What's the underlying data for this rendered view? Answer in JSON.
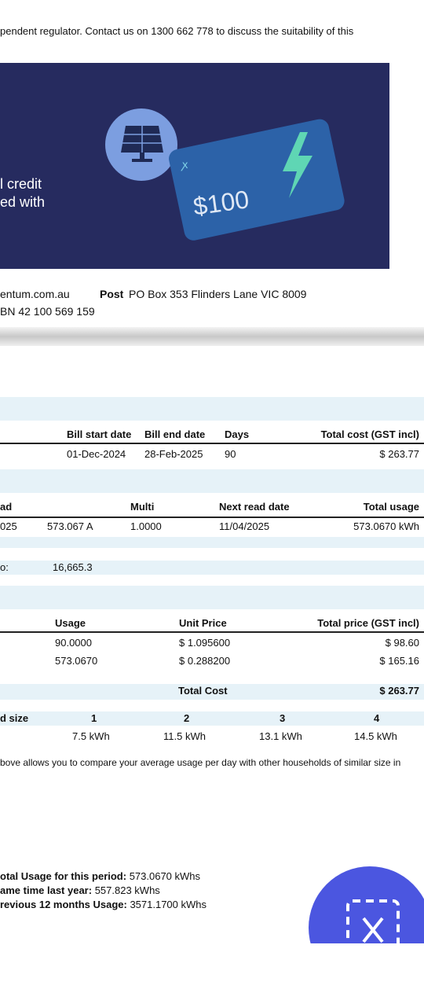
{
  "intro": "pendent regulator. Contact us on 1300 662 778 to discuss the suitability of this",
  "banner": {
    "line1": "l credit",
    "line2": "ed with",
    "amount": "$100"
  },
  "contact": {
    "web": "entum.com.au",
    "post_label": "Post",
    "post": "PO Box 353 Flinders Lane VIC 8009",
    "abn": "BN 42 100 569 159"
  },
  "bill_period": {
    "headers": [
      "Bill start date",
      "Bill end date",
      "Days",
      "Total cost (GST incl)"
    ],
    "row": [
      "01-Dec-2024",
      "28-Feb-2025",
      "90",
      "$ 263.77"
    ]
  },
  "meter": {
    "headers": [
      "ad",
      "Multi",
      "Next read date",
      "Total usage"
    ],
    "row": [
      "025",
      "573.067 A",
      "1.0000",
      "11/04/2025",
      "573.0670 kWh"
    ],
    "extra_label": "o:",
    "extra_value": "16,665.3"
  },
  "charges": {
    "headers": [
      "Usage",
      "Unit Price",
      "Total price (GST incl)"
    ],
    "rows": [
      [
        "90.0000",
        "$ 1.095600",
        "$ 98.60"
      ],
      [
        "573.0670",
        "$ 0.288200",
        "$ 165.16"
      ]
    ],
    "total_label": "Total Cost",
    "total": "$ 263.77"
  },
  "household": {
    "label": "d size",
    "sizes": [
      "1",
      "2",
      "3",
      "4"
    ],
    "usage": [
      "7.5 kWh",
      "11.5 kWh",
      "13.1 kWh",
      "14.5 kWh"
    ],
    "note": "bove allows you to compare your average usage per day with other households of similar size in"
  },
  "summary": [
    {
      "label": "otal Usage for this period:",
      "value": " 573.0670 kWhs"
    },
    {
      "label": "ame time last year:",
      "value": " 557.823 kWhs"
    },
    {
      "label": "revious  12 months Usage:",
      "value": " 3571.1700 kWhs"
    }
  ]
}
